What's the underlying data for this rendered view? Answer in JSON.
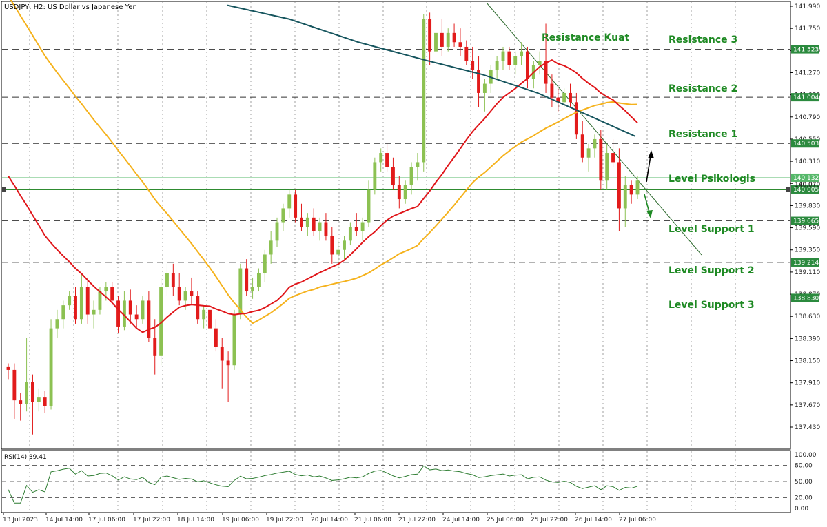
{
  "title": "USDJPY, H2:  US Dollar vs Japanese Yen",
  "rsi_label": "RSI(14) 39.41",
  "chart_data": {
    "type": "candlestick",
    "symbol": "USDJPY",
    "timeframe": "H2",
    "ylim": [
      137.2,
      142.0
    ],
    "y_ticks": [
      "141.990",
      "141.750",
      "141.510",
      "141.270",
      "141.030",
      "140.790",
      "140.550",
      "140.310",
      "140.070",
      "139.830",
      "139.590",
      "139.350",
      "139.110",
      "138.870",
      "138.630",
      "138.390",
      "138.150",
      "137.910",
      "137.670",
      "137.430"
    ],
    "x_labels": [
      "13 Jul 2023",
      "14 Jul 14:00",
      "17 Jul 06:00",
      "17 Jul 22:00",
      "18 Jul 14:00",
      "19 Jul 06:00",
      "19 Jul 22:00",
      "20 Jul 14:00",
      "21 Jul 06:00",
      "21 Jul 22:00",
      "24 Jul 14:00",
      "25 Jul 06:00",
      "25 Jul 22:00",
      "26 Jul 14:00",
      "27 Jul 06:00"
    ],
    "levels": [
      {
        "name": "Resistance 3",
        "value": 141.523
      },
      {
        "name": "Resistance 2",
        "value": 141.004
      },
      {
        "name": "Resistance 1",
        "value": 140.503
      },
      {
        "name": "Level Psikologis",
        "value": 140.005
      },
      {
        "name": "Level Support 1",
        "value": 139.665
      },
      {
        "name": "Level Support 2",
        "value": 139.214
      },
      {
        "name": "Level Support 3",
        "value": 138.83
      }
    ],
    "annotations": [
      "Resistance Kuat"
    ],
    "current_price": 140.132,
    "ask_label": "140.070",
    "candles": [
      [
        138.08,
        138.12,
        137.95,
        138.05
      ],
      [
        138.05,
        138.12,
        137.52,
        137.72
      ],
      [
        137.72,
        137.8,
        137.5,
        137.68
      ],
      [
        137.68,
        138.4,
        137.6,
        137.92
      ],
      [
        137.92,
        138.0,
        137.35,
        137.7
      ],
      [
        137.7,
        137.85,
        137.6,
        137.75
      ],
      [
        137.75,
        137.82,
        137.58,
        137.66
      ],
      [
        137.66,
        138.6,
        137.62,
        138.5
      ],
      [
        138.5,
        138.7,
        138.4,
        138.6
      ],
      [
        138.6,
        138.8,
        138.5,
        138.75
      ],
      [
        138.75,
        138.9,
        138.7,
        138.85
      ],
      [
        138.85,
        138.95,
        138.55,
        138.6
      ],
      [
        138.6,
        139.1,
        138.55,
        138.95
      ],
      [
        138.95,
        139.05,
        138.55,
        138.65
      ],
      [
        138.65,
        138.8,
        138.5,
        138.7
      ],
      [
        138.7,
        138.95,
        138.65,
        138.9
      ],
      [
        138.9,
        139.0,
        138.8,
        138.95
      ],
      [
        138.95,
        139.0,
        138.75,
        138.8
      ],
      [
        138.8,
        138.85,
        138.45,
        138.52
      ],
      [
        138.52,
        138.9,
        138.48,
        138.8
      ],
      [
        138.8,
        138.92,
        138.55,
        138.65
      ],
      [
        138.65,
        138.75,
        138.5,
        138.6
      ],
      [
        138.6,
        138.85,
        138.55,
        138.8
      ],
      [
        138.8,
        138.9,
        138.35,
        138.4
      ],
      [
        138.4,
        138.6,
        138.0,
        138.2
      ],
      [
        138.2,
        139.05,
        138.1,
        138.95
      ],
      [
        138.95,
        139.2,
        138.85,
        139.1
      ],
      [
        139.1,
        139.2,
        138.85,
        138.95
      ],
      [
        138.95,
        139.1,
        138.75,
        138.8
      ],
      [
        138.8,
        138.95,
        138.7,
        138.9
      ],
      [
        138.9,
        139.05,
        138.75,
        138.85
      ],
      [
        138.85,
        138.9,
        138.55,
        138.6
      ],
      [
        138.6,
        138.75,
        138.5,
        138.7
      ],
      [
        138.7,
        138.8,
        138.4,
        138.5
      ],
      [
        138.5,
        138.6,
        138.25,
        138.3
      ],
      [
        138.3,
        138.4,
        137.85,
        138.15
      ],
      [
        138.15,
        138.25,
        137.7,
        138.1
      ],
      [
        138.1,
        138.7,
        138.05,
        138.65
      ],
      [
        138.65,
        139.2,
        138.6,
        139.15
      ],
      [
        139.15,
        139.25,
        138.85,
        138.9
      ],
      [
        138.9,
        139.05,
        138.82,
        138.95
      ],
      [
        138.95,
        139.15,
        138.9,
        139.1
      ],
      [
        139.1,
        139.35,
        139.0,
        139.3
      ],
      [
        139.3,
        139.55,
        139.2,
        139.45
      ],
      [
        139.45,
        139.7,
        139.38,
        139.65
      ],
      [
        139.65,
        139.85,
        139.55,
        139.8
      ],
      [
        139.8,
        140.0,
        139.7,
        139.95
      ],
      [
        139.95,
        140.0,
        139.65,
        139.7
      ],
      [
        139.7,
        139.85,
        139.55,
        139.6
      ],
      [
        139.6,
        139.75,
        139.5,
        139.7
      ],
      [
        139.7,
        139.8,
        139.5,
        139.55
      ],
      [
        139.55,
        139.7,
        139.45,
        139.65
      ],
      [
        139.65,
        139.75,
        139.45,
        139.5
      ],
      [
        139.5,
        139.6,
        139.2,
        139.3
      ],
      [
        139.3,
        139.45,
        139.15,
        139.35
      ],
      [
        139.35,
        139.5,
        139.25,
        139.45
      ],
      [
        139.45,
        139.65,
        139.4,
        139.6
      ],
      [
        139.6,
        139.75,
        139.5,
        139.55
      ],
      [
        139.55,
        139.7,
        139.45,
        139.65
      ],
      [
        139.65,
        140.1,
        139.6,
        140.0
      ],
      [
        140.0,
        140.35,
        139.95,
        140.3
      ],
      [
        140.3,
        140.45,
        140.2,
        140.4
      ],
      [
        140.4,
        140.5,
        140.2,
        140.25
      ],
      [
        140.25,
        140.35,
        140.0,
        140.05
      ],
      [
        140.05,
        140.15,
        139.8,
        139.9
      ],
      [
        139.9,
        140.1,
        139.85,
        140.05
      ],
      [
        140.05,
        140.3,
        139.95,
        140.25
      ],
      [
        140.25,
        140.4,
        140.1,
        140.3
      ],
      [
        140.3,
        141.9,
        140.2,
        141.85
      ],
      [
        141.85,
        141.92,
        141.35,
        141.5
      ],
      [
        141.5,
        141.8,
        141.3,
        141.7
      ],
      [
        141.7,
        141.85,
        141.45,
        141.55
      ],
      [
        141.55,
        141.75,
        141.5,
        141.7
      ],
      [
        141.7,
        141.8,
        141.55,
        141.6
      ],
      [
        141.6,
        141.75,
        141.45,
        141.55
      ],
      [
        141.55,
        141.62,
        141.35,
        141.4
      ],
      [
        141.4,
        141.55,
        141.2,
        141.3
      ],
      [
        141.3,
        141.45,
        140.9,
        141.05
      ],
      [
        141.05,
        141.2,
        140.85,
        141.15
      ],
      [
        141.15,
        141.35,
        141.05,
        141.3
      ],
      [
        141.3,
        141.45,
        141.2,
        141.4
      ],
      [
        141.4,
        141.55,
        141.3,
        141.5
      ],
      [
        141.5,
        141.55,
        141.3,
        141.35
      ],
      [
        141.35,
        141.5,
        141.25,
        141.45
      ],
      [
        141.45,
        141.6,
        141.35,
        141.5
      ],
      [
        141.5,
        141.55,
        141.1,
        141.2
      ],
      [
        141.2,
        141.4,
        141.1,
        141.35
      ],
      [
        141.35,
        141.5,
        141.25,
        141.4
      ],
      [
        141.4,
        141.8,
        141.05,
        141.15
      ],
      [
        141.15,
        141.25,
        140.9,
        141.0
      ],
      [
        141.0,
        141.1,
        140.85,
        140.95
      ],
      [
        140.95,
        141.1,
        140.9,
        141.05
      ],
      [
        141.05,
        141.15,
        140.9,
        140.95
      ],
      [
        140.95,
        141.05,
        140.55,
        140.6
      ],
      [
        140.6,
        140.75,
        140.3,
        140.35
      ],
      [
        140.35,
        140.5,
        140.2,
        140.45
      ],
      [
        140.45,
        140.6,
        140.35,
        140.55
      ],
      [
        140.55,
        140.65,
        140.0,
        140.1
      ],
      [
        140.1,
        140.5,
        140.0,
        140.4
      ],
      [
        140.4,
        140.55,
        140.25,
        140.3
      ],
      [
        140.3,
        140.45,
        139.55,
        139.8
      ],
      [
        139.8,
        140.15,
        139.6,
        140.05
      ],
      [
        140.05,
        140.1,
        139.85,
        139.95
      ],
      [
        139.95,
        140.15,
        139.9,
        140.1
      ]
    ],
    "series": [
      {
        "name": "",
        "color": "#f5b21c"
      },
      {
        "name": "",
        "color": "#e0161a"
      },
      {
        "name": "",
        "color": "#16555e"
      }
    ],
    "rsi": {
      "label": "RSI(14) 39.41",
      "ylim": [
        0,
        100
      ],
      "ticks": [
        "100.00",
        "80.00",
        "50.00",
        "20.00",
        "0.00"
      ],
      "levels": [
        80,
        50,
        20
      ]
    }
  }
}
